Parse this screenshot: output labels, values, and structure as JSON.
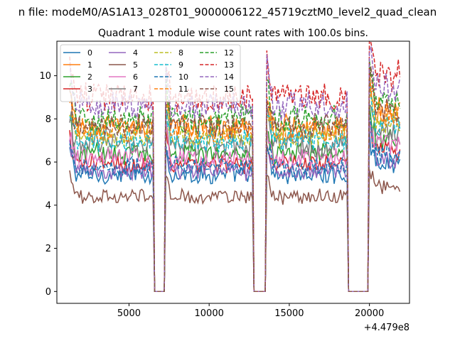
{
  "figure": {
    "suptitle": "n file: modeM0/AS1A13_028T01_9000006122_45719cztM0_level2_quad_clean",
    "offset_label": "+4.479e8"
  },
  "chart_data": {
    "type": "line",
    "title": "Quadrant 1 module wise count rates with 100.0s bins.",
    "xlabel": "",
    "ylabel": "",
    "x_offset": 447900000,
    "xlim": [
      500,
      22500
    ],
    "ylim": [
      -0.55,
      11.6
    ],
    "xticks": [
      5000,
      10000,
      15000,
      20000
    ],
    "yticks": [
      0,
      2,
      4,
      6,
      8,
      10
    ],
    "grid": false,
    "legend": {
      "placement": "top-left",
      "columns": 4
    },
    "x": {
      "start": 1300,
      "stop": 21900,
      "step": 100
    },
    "gaps": [
      [
        6500,
        7300
      ],
      [
        12700,
        13600
      ],
      [
        18600,
        20000
      ]
    ],
    "segments": [
      [
        1300,
        6500
      ],
      [
        7300,
        12700
      ],
      [
        13600,
        18600
      ],
      [
        20000,
        21900
      ]
    ],
    "segment_levels": [
      1.0,
      1.0,
      1.0,
      1.1
    ],
    "series": [
      {
        "name": "0",
        "color": "#1f77b4",
        "dash": "solid",
        "level": 5.4
      },
      {
        "name": "1",
        "color": "#ff7f0e",
        "dash": "solid",
        "level": 7.6
      },
      {
        "name": "2",
        "color": "#2ca02c",
        "dash": "solid",
        "level": 6.4
      },
      {
        "name": "3",
        "color": "#d62728",
        "dash": "solid",
        "level": 5.9
      },
      {
        "name": "4",
        "color": "#9467bd",
        "dash": "solid",
        "level": 5.6
      },
      {
        "name": "5",
        "color": "#8c564b",
        "dash": "solid",
        "level": 4.4
      },
      {
        "name": "6",
        "color": "#e377c2",
        "dash": "solid",
        "level": 6.2
      },
      {
        "name": "7",
        "color": "#7f7f7f",
        "dash": "solid",
        "level": 6.8
      },
      {
        "name": "8",
        "color": "#bcbd22",
        "dash": "dashed",
        "level": 7.2
      },
      {
        "name": "9",
        "color": "#17becf",
        "dash": "dashed",
        "level": 7.0
      },
      {
        "name": "10",
        "color": "#1f77b4",
        "dash": "dashed",
        "level": 5.8
      },
      {
        "name": "11",
        "color": "#ff7f0e",
        "dash": "dashed",
        "level": 7.5
      },
      {
        "name": "12",
        "color": "#2ca02c",
        "dash": "dashed",
        "level": 8.0
      },
      {
        "name": "13",
        "color": "#d62728",
        "dash": "dashed",
        "level": 9.0
      },
      {
        "name": "14",
        "color": "#9467bd",
        "dash": "dashed",
        "level": 8.6
      },
      {
        "name": "15",
        "color": "#8c564b",
        "dash": "dashed",
        "level": 7.7
      }
    ]
  }
}
